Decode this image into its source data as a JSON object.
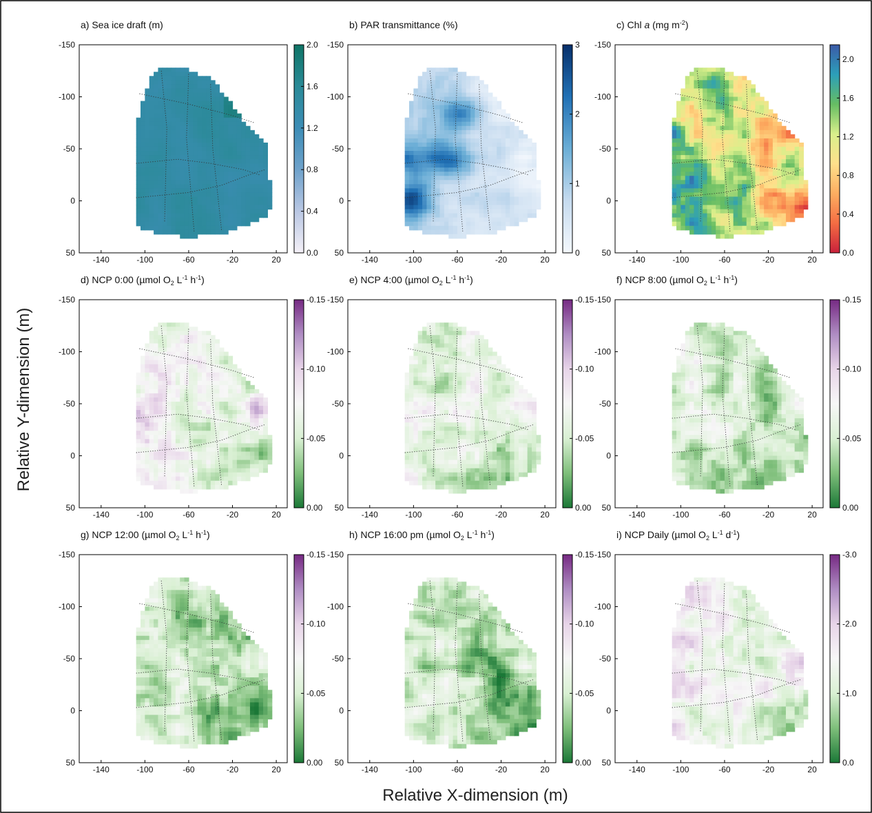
{
  "figure": {
    "common_ylabel": "Relative Y-dimension (m)",
    "common_xlabel": "Relative X-dimension (m)"
  },
  "chart_data": [
    {
      "type": "heatmap",
      "title": {
        "base": "a) Sea ice draft (m)",
        "parts": [
          {
            "t": "a) Sea ice draft (m)"
          }
        ]
      },
      "xticks": [
        -140,
        -100,
        -60,
        -20,
        20
      ],
      "yticks": [
        -150,
        -100,
        -50,
        0,
        50
      ],
      "xlim": [
        -160,
        30
      ],
      "ylim": [
        -150,
        50
      ],
      "colorbar": {
        "ticks": [
          "0.0",
          "0.4",
          "0.8",
          "1.2",
          "1.6",
          "2.0"
        ],
        "range": [
          0,
          2
        ],
        "stops": [
          "#f4f0f7",
          "#b9c7e3",
          "#6fa2cb",
          "#3d8db6",
          "#2a8a97",
          "#0f7466"
        ]
      },
      "base_value": 1.45,
      "hotspots": []
    },
    {
      "type": "heatmap",
      "title": {
        "base": "b) PAR transmittance (%)",
        "parts": [
          {
            "t": "b) PAR transmittance (%)"
          }
        ]
      },
      "xticks": [
        -140,
        -100,
        -60,
        -20,
        20
      ],
      "yticks": [
        -150,
        -100,
        -50,
        0,
        50
      ],
      "xlim": [
        -160,
        30
      ],
      "ylim": [
        -150,
        50
      ],
      "colorbar": {
        "ticks": [
          "0",
          "1",
          "2",
          "3"
        ],
        "range": [
          0,
          3
        ],
        "stops": [
          "#f4f8fd",
          "#c6dbef",
          "#6baed6",
          "#2171b5",
          "#08306b"
        ]
      },
      "base_value": 0.6,
      "hotspots": [
        {
          "x": -100,
          "y": 0,
          "v": 2.3
        },
        {
          "x": -60,
          "y": -82,
          "v": 2.0
        },
        {
          "x": -78,
          "y": -42,
          "v": 1.8
        },
        {
          "x": -104,
          "y": -38,
          "v": 1.7
        },
        {
          "x": -58,
          "y": -35,
          "v": 1.6
        }
      ]
    },
    {
      "type": "heatmap",
      "title": {
        "base": "c) Chl a (mg m-2)",
        "parts": [
          {
            "t": "c) Chl "
          },
          {
            "t": "a",
            "style": "italic"
          },
          {
            "t": " (mg m"
          },
          {
            "t": "-2",
            "style": "sup"
          },
          {
            "t": ")"
          }
        ]
      },
      "xticks": [
        -140,
        -100,
        -60,
        -20,
        20
      ],
      "yticks": [
        -150,
        -100,
        -50,
        0,
        50
      ],
      "xlim": [
        -160,
        30
      ],
      "ylim": [
        -150,
        50
      ],
      "colorbar": {
        "ticks": [
          "0.0",
          "0.4",
          "0.8",
          "1.2",
          "1.6",
          "2.0"
        ],
        "range": [
          0,
          2.15
        ],
        "stops": [
          "#c9213b",
          "#f46d43",
          "#fdae61",
          "#fee08b",
          "#d9ef8b",
          "#66bd63",
          "#2c9fb9",
          "#3b5aa8"
        ]
      },
      "base_value": 1.15,
      "hotspots": []
    },
    {
      "type": "heatmap",
      "title": {
        "base": "d) NCP 0:00 (µmol O2 L-1 h-1)",
        "parts": [
          {
            "t": "d) NCP 0:00 (µmol O"
          },
          {
            "t": "2",
            "style": "sub"
          },
          {
            "t": " L"
          },
          {
            "t": "-1",
            "style": "sup"
          },
          {
            "t": " h"
          },
          {
            "t": "-1",
            "style": "sup"
          },
          {
            "t": ")"
          }
        ]
      },
      "xticks": [
        -140,
        -100,
        -60,
        -20,
        20
      ],
      "yticks": [
        -150,
        -100,
        -50,
        0,
        50
      ],
      "xlim": [
        -160,
        30
      ],
      "ylim": [
        -150,
        50
      ],
      "colorbar": {
        "ticks": [
          "0.00",
          "-0.05",
          "-0.10",
          "-0.15"
        ],
        "range": [
          -0.15,
          0
        ],
        "reverse": true,
        "stops": [
          "#1b7837",
          "#7fbf7b",
          "#d9f0d3",
          "#f7f7f7",
          "#e7d4e8",
          "#af8dc3",
          "#762a83"
        ]
      },
      "base_value": -0.06,
      "hotspots": [
        {
          "x": 5,
          "y": -45,
          "v": -0.11
        }
      ]
    },
    {
      "type": "heatmap",
      "title": {
        "base": "e) NCP 4:00 (µmol O2 L-1 h-1)",
        "parts": [
          {
            "t": "e) NCP 4:00 (µmol O"
          },
          {
            "t": "2",
            "style": "sub"
          },
          {
            "t": " L"
          },
          {
            "t": "-1",
            "style": "sup"
          },
          {
            "t": " h"
          },
          {
            "t": "-1",
            "style": "sup"
          },
          {
            "t": ")"
          }
        ]
      },
      "xticks": [
        -140,
        -100,
        -60,
        -20,
        20
      ],
      "yticks": [
        -150,
        -100,
        -50,
        0,
        50
      ],
      "xlim": [
        -160,
        30
      ],
      "ylim": [
        -150,
        50
      ],
      "colorbar": {
        "ticks": [
          "0.00",
          "-0.05",
          "-0.10",
          "-0.15"
        ],
        "range": [
          -0.15,
          0
        ],
        "reverse": true,
        "stops": [
          "#1b7837",
          "#7fbf7b",
          "#d9f0d3",
          "#f7f7f7",
          "#e7d4e8",
          "#af8dc3",
          "#762a83"
        ]
      },
      "base_value": -0.055,
      "hotspots": [
        {
          "x": 5,
          "y": -45,
          "v": -0.1
        }
      ]
    },
    {
      "type": "heatmap",
      "title": {
        "base": "f) NCP 8:00 (µmol O2 L-1 h-1)",
        "parts": [
          {
            "t": "f) NCP 8:00 (µmol O"
          },
          {
            "t": "2",
            "style": "sub"
          },
          {
            "t": " L"
          },
          {
            "t": "-1",
            "style": "sup"
          },
          {
            "t": " h"
          },
          {
            "t": "-1",
            "style": "sup"
          },
          {
            "t": ")"
          }
        ]
      },
      "xticks": [
        -140,
        -100,
        -60,
        -20,
        20
      ],
      "yticks": [
        -150,
        -100,
        -50,
        0,
        50
      ],
      "xlim": [
        -160,
        30
      ],
      "ylim": [
        -150,
        50
      ],
      "colorbar": {
        "ticks": [
          "0.00",
          "-0.05",
          "-0.10",
          "-0.15"
        ],
        "range": [
          -0.15,
          0
        ],
        "reverse": true,
        "stops": [
          "#1b7837",
          "#7fbf7b",
          "#d9f0d3",
          "#f7f7f7",
          "#e7d4e8",
          "#af8dc3",
          "#762a83"
        ]
      },
      "base_value": -0.045,
      "hotspots": [
        {
          "x": 5,
          "y": -45,
          "v": -0.09
        }
      ]
    },
    {
      "type": "heatmap",
      "title": {
        "base": "g) NCP 12:00 (µmol O2 L-1 h-1)",
        "parts": [
          {
            "t": "g) NCP 12:00 (µmol O"
          },
          {
            "t": "2",
            "style": "sub"
          },
          {
            "t": " L"
          },
          {
            "t": "-1",
            "style": "sup"
          },
          {
            "t": " h"
          },
          {
            "t": "-1",
            "style": "sup"
          },
          {
            "t": ")"
          }
        ]
      },
      "xticks": [
        -140,
        -100,
        -60,
        -20,
        20
      ],
      "yticks": [
        -150,
        -100,
        -50,
        0,
        50
      ],
      "xlim": [
        -160,
        30
      ],
      "ylim": [
        -150,
        50
      ],
      "colorbar": {
        "ticks": [
          "0.00",
          "-0.05",
          "-0.10",
          "-0.15"
        ],
        "range": [
          -0.15,
          0
        ],
        "reverse": true,
        "stops": [
          "#1b7837",
          "#7fbf7b",
          "#d9f0d3",
          "#f7f7f7",
          "#e7d4e8",
          "#af8dc3",
          "#762a83"
        ]
      },
      "base_value": -0.04,
      "hotspots": [
        {
          "x": 5,
          "y": -45,
          "v": -0.09
        }
      ]
    },
    {
      "type": "heatmap",
      "title": {
        "base": "h) NCP 16:00 pm (µmol O2 L-1 h-1)",
        "parts": [
          {
            "t": "h) NCP 16:00 pm (µmol O"
          },
          {
            "t": "2",
            "style": "sub"
          },
          {
            "t": " L"
          },
          {
            "t": "-1",
            "style": "sup"
          },
          {
            "t": " h"
          },
          {
            "t": "-1",
            "style": "sup"
          },
          {
            "t": ")"
          }
        ]
      },
      "xticks": [
        -140,
        -100,
        -60,
        -20,
        20
      ],
      "yticks": [
        -150,
        -100,
        -50,
        0,
        50
      ],
      "xlim": [
        -160,
        30
      ],
      "ylim": [
        -150,
        50
      ],
      "colorbar": {
        "ticks": [
          "0.00",
          "-0.05",
          "-0.10",
          "-0.15"
        ],
        "range": [
          -0.15,
          0
        ],
        "reverse": true,
        "stops": [
          "#1b7837",
          "#7fbf7b",
          "#d9f0d3",
          "#f7f7f7",
          "#e7d4e8",
          "#af8dc3",
          "#762a83"
        ]
      },
      "base_value": -0.04,
      "hotspots": [
        {
          "x": 5,
          "y": -45,
          "v": -0.085
        }
      ]
    },
    {
      "type": "heatmap",
      "title": {
        "base": "i) NCP Daily (µmol O2 L-1 d-1)",
        "parts": [
          {
            "t": "i) NCP Daily (µmol O"
          },
          {
            "t": "2",
            "style": "sub"
          },
          {
            "t": " L"
          },
          {
            "t": "-1",
            "style": "sup"
          },
          {
            "t": " d"
          },
          {
            "t": "-1",
            "style": "sup"
          },
          {
            "t": ")"
          }
        ]
      },
      "xticks": [
        -140,
        -100,
        -60,
        -20,
        20
      ],
      "yticks": [
        -150,
        -100,
        -50,
        0,
        50
      ],
      "xlim": [
        -160,
        30
      ],
      "ylim": [
        -150,
        50
      ],
      "colorbar": {
        "ticks": [
          "0.0",
          "-1.0",
          "-2.0",
          "-3.0"
        ],
        "range": [
          -3,
          0
        ],
        "reverse": true,
        "stops": [
          "#1b7837",
          "#7fbf7b",
          "#d9f0d3",
          "#f7f7f7",
          "#e7d4e8",
          "#af8dc3",
          "#762a83"
        ]
      },
      "base_value": -1.3,
      "hotspots": [
        {
          "x": 5,
          "y": -45,
          "v": -2.3
        }
      ]
    }
  ]
}
